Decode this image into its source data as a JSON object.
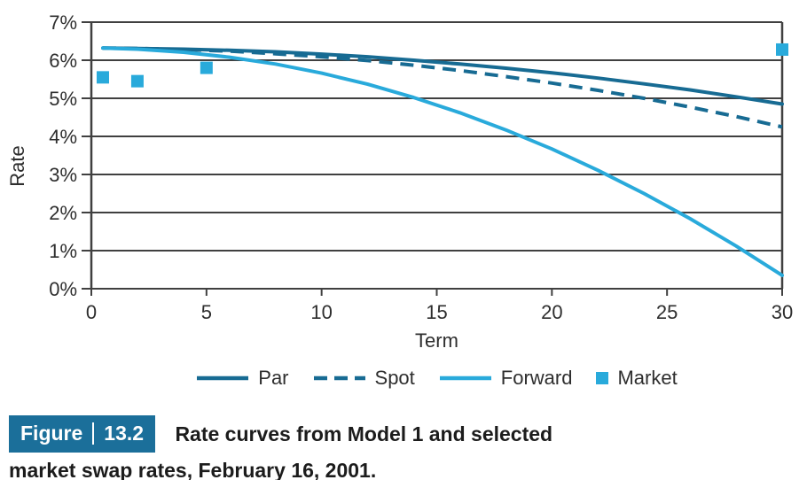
{
  "figure": {
    "badge": {
      "label": "Figure",
      "number": "13.2"
    },
    "caption_line1": "Rate curves from Model 1 and selected",
    "caption_line2": "market swap rates, February 16, 2001."
  },
  "colors": {
    "accent_dark": "#176b93",
    "accent_light": "#29aadb",
    "badge_bg": "#1b6f9a",
    "grid": "#404040",
    "axis_text": "#2e2e2e"
  },
  "chart_data": {
    "type": "line",
    "title": "",
    "xlabel": "Term",
    "ylabel": "Rate",
    "xlim": [
      0,
      30
    ],
    "ylim": [
      0,
      7
    ],
    "x_ticks": [
      0,
      5,
      10,
      15,
      20,
      25,
      30
    ],
    "y_ticks": [
      0,
      1,
      2,
      3,
      4,
      5,
      6,
      7
    ],
    "y_tick_suffix": "%",
    "grid": "horizontal",
    "legend_position": "bottom",
    "series": [
      {
        "name": "Par",
        "type": "line",
        "style": "solid",
        "color_key": "accent_dark",
        "x": [
          0.5,
          2,
          4,
          6,
          8,
          10,
          12,
          14,
          16,
          18,
          20,
          22,
          24,
          26,
          28,
          30
        ],
        "y": [
          6.32,
          6.31,
          6.29,
          6.26,
          6.22,
          6.16,
          6.09,
          6.0,
          5.9,
          5.79,
          5.67,
          5.53,
          5.38,
          5.22,
          5.04,
          4.85
        ]
      },
      {
        "name": "Spot",
        "type": "line",
        "style": "dashed",
        "color_key": "accent_dark",
        "x": [
          0.5,
          2,
          4,
          6,
          8,
          10,
          12,
          14,
          16,
          18,
          20,
          22,
          24,
          26,
          28,
          30
        ],
        "y": [
          6.32,
          6.31,
          6.28,
          6.24,
          6.17,
          6.09,
          5.99,
          5.87,
          5.73,
          5.57,
          5.4,
          5.21,
          5.0,
          4.77,
          4.52,
          4.25
        ]
      },
      {
        "name": "Forward",
        "type": "line",
        "style": "solid",
        "color_key": "accent_light",
        "x": [
          0.5,
          2,
          4,
          6,
          8,
          10,
          12,
          14,
          16,
          18,
          20,
          22,
          24,
          26,
          28,
          30
        ],
        "y": [
          6.32,
          6.29,
          6.21,
          6.08,
          5.9,
          5.66,
          5.37,
          5.02,
          4.62,
          4.17,
          3.67,
          3.11,
          2.5,
          1.84,
          1.12,
          0.35
        ]
      },
      {
        "name": "Market",
        "type": "scatter",
        "color_key": "accent_light",
        "points": [
          [
            0.5,
            5.55
          ],
          [
            2,
            5.45
          ],
          [
            5,
            5.8
          ],
          [
            30,
            6.28
          ]
        ]
      }
    ]
  }
}
